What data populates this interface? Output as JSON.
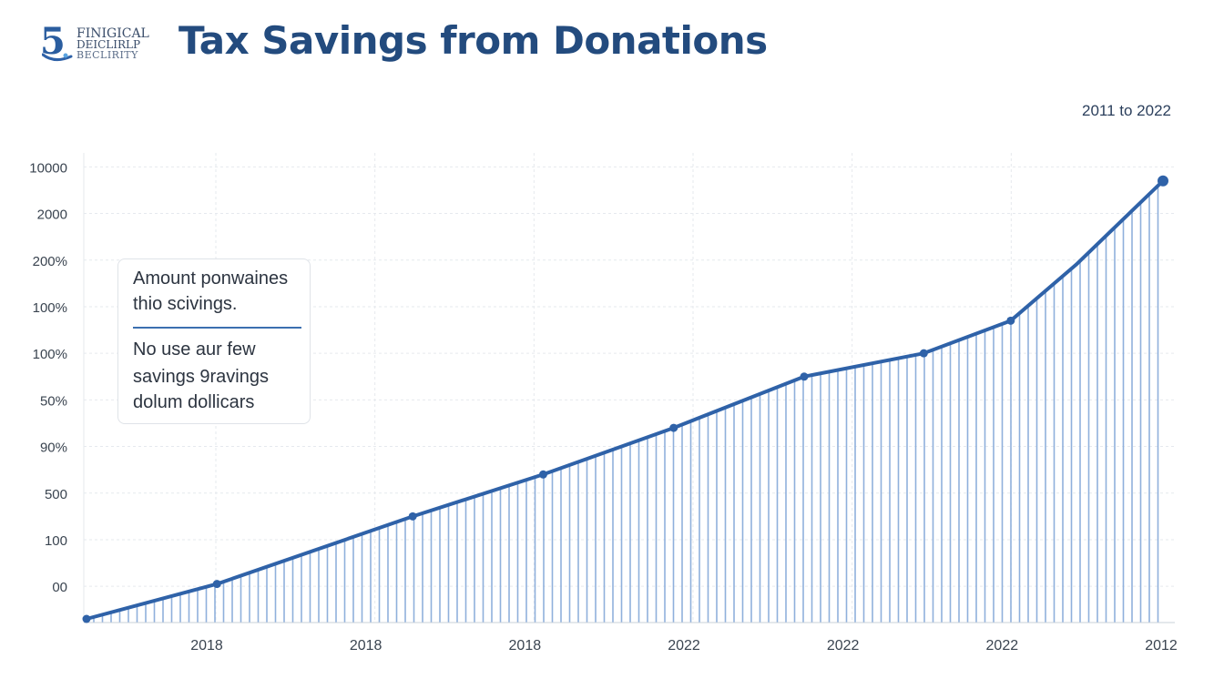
{
  "logo": {
    "mark": "5",
    "line1": "FINIGICAL",
    "line2": "DEICLIRLP",
    "line3": "BECLIRITY"
  },
  "title": "Tax Savings from Donations",
  "date_range": "2011 to 2022",
  "legend": {
    "line1": "Amount ponwaines",
    "line2": "thio scivings.",
    "line3": "No use aur few",
    "line4": "savings 9ravings",
    "line5": "dolum dollicars"
  },
  "colors": {
    "line": "#2f62a8",
    "fill_stripes": "#8fb0dc",
    "grid": "#e6e9ee",
    "title": "#234b7e"
  },
  "chart_data": {
    "type": "area",
    "title": "Tax Savings from Donations",
    "subtitle": "2011 to 2022",
    "y_tick_labels": [
      "00",
      "100",
      "500",
      "90%",
      "50%",
      "100%",
      "100%",
      "200%",
      "2000",
      "10000"
    ],
    "x_tick_labels": [
      "2018",
      "2018",
      "2018",
      "2022",
      "2022",
      "2022",
      "2012"
    ],
    "y_range": [
      -0.7,
      9.3
    ],
    "x_range": [
      0,
      9.9
    ],
    "grid": true,
    "legend_position": "left",
    "series": [
      {
        "x": [
          0,
          1.2,
          3.0,
          4.2,
          5.4,
          6.6,
          7.7,
          8.5,
          9.1,
          9.9
        ],
        "y": [
          -0.7,
          0.05,
          1.5,
          2.4,
          3.4,
          4.5,
          5.0,
          5.7,
          6.9,
          8.7
        ],
        "markers": [
          0,
          1,
          2,
          3,
          4,
          5,
          6,
          7,
          9
        ]
      }
    ]
  }
}
